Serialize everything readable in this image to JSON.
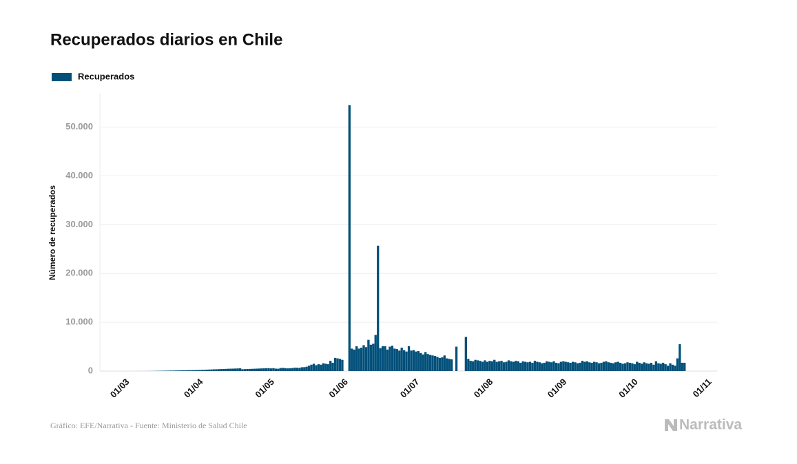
{
  "chart_data": {
    "type": "bar",
    "title": "Recuperados diarios en Chile",
    "y_label": "Número de recuperados",
    "source": "Gráfico: EFE/Narrativa - Fuente: Ministerio de Salud Chile",
    "brand": "Narrativa",
    "grid": true,
    "legend": "top-left",
    "categories": [
      "01/03",
      null,
      null,
      null,
      null,
      null,
      null,
      null,
      null,
      null,
      null,
      null,
      null,
      null,
      null,
      null,
      null,
      null,
      null,
      null,
      null,
      null,
      null,
      null,
      null,
      null,
      null,
      null,
      null,
      null,
      null,
      "01/04",
      null,
      null,
      null,
      null,
      null,
      null,
      null,
      null,
      null,
      null,
      null,
      null,
      null,
      null,
      null,
      null,
      null,
      null,
      null,
      null,
      null,
      null,
      null,
      null,
      null,
      null,
      null,
      null,
      null,
      "01/05",
      null,
      null,
      null,
      null,
      null,
      null,
      null,
      null,
      null,
      null,
      null,
      null,
      null,
      null,
      null,
      null,
      null,
      null,
      null,
      null,
      null,
      null,
      null,
      null,
      null,
      null,
      null,
      null,
      null,
      null,
      "01/06",
      null,
      null,
      null,
      null,
      null,
      null,
      null,
      null,
      null,
      null,
      null,
      null,
      null,
      null,
      null,
      null,
      null,
      null,
      null,
      null,
      null,
      null,
      null,
      null,
      null,
      null,
      null,
      null,
      null,
      "01/07",
      null,
      null,
      null,
      null,
      null,
      null,
      null,
      null,
      null,
      null,
      null,
      null,
      null,
      null,
      null,
      null,
      null,
      null,
      null,
      null,
      null,
      null,
      null,
      null,
      null,
      null,
      null,
      null,
      null,
      null,
      "01/08",
      null,
      null,
      null,
      null,
      null,
      null,
      null,
      null,
      null,
      null,
      null,
      null,
      null,
      null,
      null,
      null,
      null,
      null,
      null,
      null,
      null,
      null,
      null,
      null,
      null,
      null,
      null,
      null,
      null,
      null,
      "01/09",
      null,
      null,
      null,
      null,
      null,
      null,
      null,
      null,
      null,
      null,
      null,
      null,
      null,
      null,
      null,
      null,
      null,
      null,
      null,
      null,
      null,
      null,
      null,
      null,
      null,
      null,
      null,
      null,
      null,
      "01/10",
      null,
      null,
      null,
      null,
      null,
      null,
      null,
      null,
      null,
      null,
      null,
      null,
      null,
      null,
      null,
      null,
      null,
      null,
      null,
      null,
      null,
      null,
      null,
      null,
      null,
      null,
      null,
      null,
      null,
      null,
      "01/11"
    ],
    "series": [
      {
        "name": "Recuperados",
        "color": "#02507a",
        "values": [
          0,
          0,
          0,
          1,
          0,
          1,
          3,
          5,
          10,
          10,
          15,
          20,
          30,
          40,
          50,
          60,
          70,
          80,
          90,
          100,
          110,
          120,
          130,
          140,
          150,
          160,
          170,
          180,
          190,
          200,
          210,
          230,
          250,
          270,
          290,
          310,
          330,
          350,
          370,
          390,
          410,
          430,
          450,
          470,
          490,
          500,
          520,
          540,
          560,
          380,
          400,
          420,
          440,
          460,
          480,
          500,
          520,
          540,
          560,
          580,
          600,
          550,
          600,
          500,
          480,
          620,
          650,
          600,
          550,
          580,
          620,
          700,
          680,
          650,
          780,
          800,
          900,
          1100,
          1300,
          1500,
          1200,
          1400,
          1300,
          1600,
          1500,
          1400,
          2100,
          1700,
          2700,
          2600,
          2500,
          2300,
          null,
          null,
          54500,
          4600,
          4400,
          5100,
          4600,
          4800,
          5300,
          4900,
          6400,
          5400,
          5600,
          7400,
          25700,
          4700,
          5100,
          5100,
          4400,
          5000,
          5200,
          4600,
          4500,
          4200,
          4800,
          4300,
          4000,
          5100,
          4200,
          4300,
          4000,
          4100,
          3700,
          3400,
          3900,
          3500,
          3300,
          3200,
          3100,
          2900,
          2700,
          2800,
          3200,
          2600,
          2500,
          2400,
          null,
          5000,
          null,
          null,
          null,
          7000,
          2500,
          2100,
          2000,
          2300,
          2200,
          2100,
          1900,
          2200,
          1900,
          2100,
          2000,
          2300,
          1900,
          2000,
          2100,
          1800,
          1900,
          2200,
          2000,
          1900,
          2100,
          2000,
          1700,
          2000,
          1900,
          1800,
          1900,
          1700,
          2100,
          1900,
          1800,
          1600,
          1700,
          2000,
          1900,
          1800,
          2000,
          1700,
          1600,
          1900,
          2000,
          1900,
          1800,
          1700,
          1900,
          1800,
          1600,
          1700,
          2100,
          1900,
          2000,
          1800,
          1700,
          1900,
          1800,
          1600,
          1700,
          1900,
          2000,
          1800,
          1700,
          1600,
          1800,
          1900,
          1700,
          1500,
          1600,
          1800,
          1700,
          1600,
          1400,
          1900,
          1700,
          1500,
          1800,
          1600,
          1500,
          1700,
          1300,
          2000,
          1600,
          1500,
          1700,
          1400,
          1100,
          1600,
          1300,
          1100,
          2600,
          5500,
          1700,
          1700,
          null,
          null,
          null,
          null,
          null,
          null,
          null,
          null,
          null,
          null
        ]
      }
    ],
    "ylim": [
      0,
      57000
    ],
    "yticks": [
      0,
      {
        "value": 10000,
        "label": "10.000"
      },
      {
        "value": 20000,
        "label": "20.000"
      },
      {
        "value": 30000,
        "label": "30.000"
      },
      {
        "value": 40000,
        "label": "40.000"
      },
      {
        "value": 50000,
        "label": "50.000"
      }
    ]
  }
}
